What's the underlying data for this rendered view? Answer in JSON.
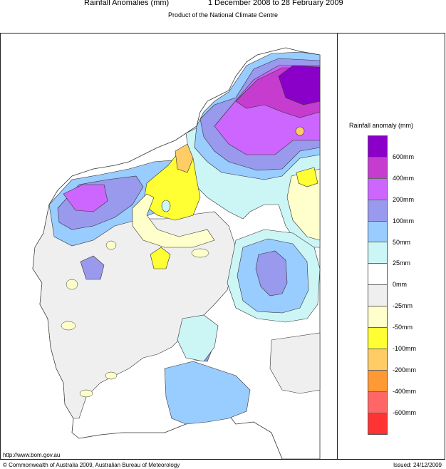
{
  "title": {
    "left": "Rainfall Anomalies (mm)",
    "right": "1 December 2008 to 28 February 2009",
    "subtitle": "Product of the National Climate Centre"
  },
  "legend": {
    "title": "Rainfall anomaly (mm)",
    "items": [
      {
        "label": "600mm",
        "color": "#8a00c8"
      },
      {
        "label": "400mm",
        "color": "#c63ccf"
      },
      {
        "label": "200mm",
        "color": "#cc66ff"
      },
      {
        "label": "100mm",
        "color": "#9999ee"
      },
      {
        "label": "50mm",
        "color": "#99ccff"
      },
      {
        "label": "25mm",
        "color": "#ccf5f5"
      },
      {
        "label": "0mm",
        "color": "#ffffff"
      },
      {
        "label": "-25mm",
        "color": "#efefef"
      },
      {
        "label": "-50mm",
        "color": "#ffffcc"
      },
      {
        "label": "-100mm",
        "color": "#ffff33"
      },
      {
        "label": "-200mm",
        "color": "#ffcc66"
      },
      {
        "label": "-400mm",
        "color": "#ff9933"
      },
      {
        "label": "-600mm",
        "color": "#ff6666"
      },
      {
        "label": "",
        "color": "#ff3333"
      }
    ]
  },
  "footer": {
    "url": "http://www.bom.gov.au",
    "copyright": "© Commonwealth of Australia 2009, Australian Bureau of Meteorology",
    "issued": "Issued: 24/12/2009"
  }
}
